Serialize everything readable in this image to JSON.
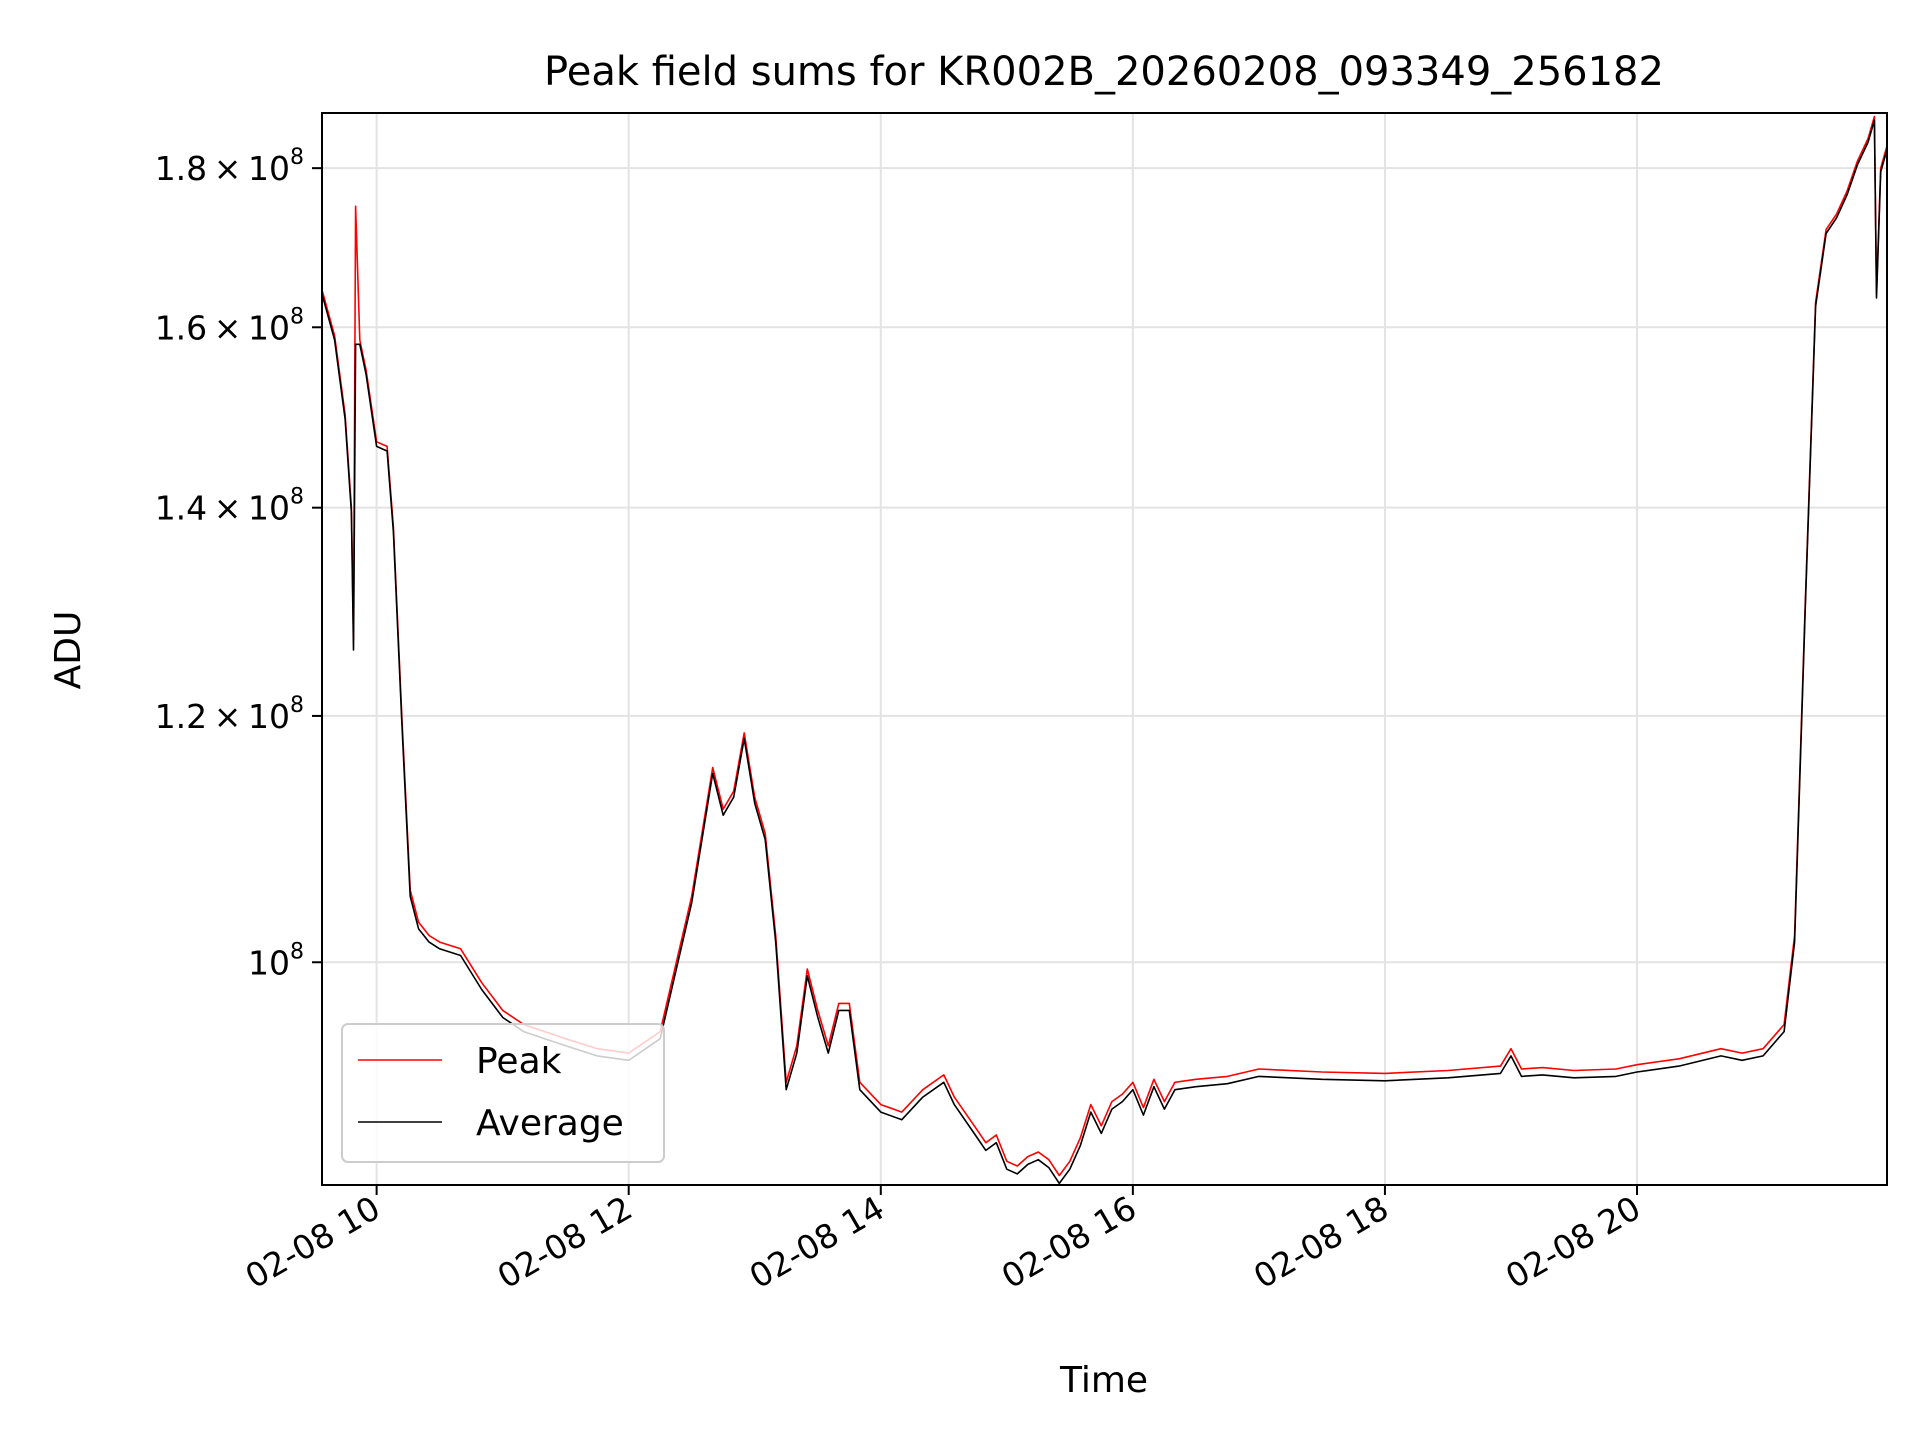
{
  "chart_data": {
    "type": "line",
    "title": "Peak field sums for KR002B_20260208_093349_256182",
    "xlabel": "Time",
    "ylabel": "ADU",
    "x_axis": "datetime",
    "y_scale": "log",
    "xlim": [
      "2026-02-08 09:34",
      "2026-02-08 21:59"
    ],
    "ylim": [
      84800000,
      187500000
    ],
    "grid": true,
    "legend_placement": "lower-left",
    "x_ticks": [
      {
        "value": "2026-02-08 10:00",
        "label": "02-08 10"
      },
      {
        "value": "2026-02-08 12:00",
        "label": "02-08 12"
      },
      {
        "value": "2026-02-08 14:00",
        "label": "02-08 14"
      },
      {
        "value": "2026-02-08 16:00",
        "label": "02-08 16"
      },
      {
        "value": "2026-02-08 18:00",
        "label": "02-08 18"
      },
      {
        "value": "2026-02-08 20:00",
        "label": "02-08 20"
      }
    ],
    "y_ticks": [
      {
        "value": 100000000,
        "mantissa": "",
        "exponent": "8"
      },
      {
        "value": 120000000,
        "mantissa": "1.2",
        "exponent": "8"
      },
      {
        "value": 140000000,
        "mantissa": "1.4",
        "exponent": "8"
      },
      {
        "value": 160000000,
        "mantissa": "1.6",
        "exponent": "8"
      },
      {
        "value": 180000000,
        "mantissa": "1.8",
        "exponent": "8"
      }
    ],
    "colors": {
      "peak": "#ff0000",
      "average": "#000000",
      "grid": "#e3e3e3"
    },
    "x": [
      "2026-02-08 09:34",
      "2026-02-08 09:40",
      "2026-02-08 09:45",
      "2026-02-08 09:48",
      "2026-02-08 09:49",
      "2026-02-08 09:50",
      "2026-02-08 09:52",
      "2026-02-08 09:55",
      "2026-02-08 10:00",
      "2026-02-08 10:05",
      "2026-02-08 10:08",
      "2026-02-08 10:12",
      "2026-02-08 10:16",
      "2026-02-08 10:20",
      "2026-02-08 10:25",
      "2026-02-08 10:30",
      "2026-02-08 10:40",
      "2026-02-08 10:50",
      "2026-02-08 11:00",
      "2026-02-08 11:10",
      "2026-02-08 11:20",
      "2026-02-08 11:30",
      "2026-02-08 11:45",
      "2026-02-08 12:00",
      "2026-02-08 12:15",
      "2026-02-08 12:30",
      "2026-02-08 12:40",
      "2026-02-08 12:45",
      "2026-02-08 12:50",
      "2026-02-08 12:55",
      "2026-02-08 13:00",
      "2026-02-08 13:05",
      "2026-02-08 13:10",
      "2026-02-08 13:15",
      "2026-02-08 13:20",
      "2026-02-08 13:25",
      "2026-02-08 13:30",
      "2026-02-08 13:35",
      "2026-02-08 13:40",
      "2026-02-08 13:45",
      "2026-02-08 13:50",
      "2026-02-08 14:00",
      "2026-02-08 14:10",
      "2026-02-08 14:20",
      "2026-02-08 14:30",
      "2026-02-08 14:35",
      "2026-02-08 14:45",
      "2026-02-08 14:50",
      "2026-02-08 14:55",
      "2026-02-08 15:00",
      "2026-02-08 15:05",
      "2026-02-08 15:10",
      "2026-02-08 15:15",
      "2026-02-08 15:20",
      "2026-02-08 15:25",
      "2026-02-08 15:30",
      "2026-02-08 15:35",
      "2026-02-08 15:40",
      "2026-02-08 15:45",
      "2026-02-08 15:50",
      "2026-02-08 15:55",
      "2026-02-08 16:00",
      "2026-02-08 16:05",
      "2026-02-08 16:10",
      "2026-02-08 16:15",
      "2026-02-08 16:20",
      "2026-02-08 16:30",
      "2026-02-08 16:45",
      "2026-02-08 17:00",
      "2026-02-08 17:30",
      "2026-02-08 18:00",
      "2026-02-08 18:30",
      "2026-02-08 18:55",
      "2026-02-08 19:00",
      "2026-02-08 19:05",
      "2026-02-08 19:15",
      "2026-02-08 19:30",
      "2026-02-08 19:50",
      "2026-02-08 20:00",
      "2026-02-08 20:20",
      "2026-02-08 20:40",
      "2026-02-08 20:50",
      "2026-02-08 21:00",
      "2026-02-08 21:10",
      "2026-02-08 21:15",
      "2026-02-08 21:20",
      "2026-02-08 21:25",
      "2026-02-08 21:30",
      "2026-02-08 21:35",
      "2026-02-08 21:40",
      "2026-02-08 21:45",
      "2026-02-08 21:50",
      "2026-02-08 21:53",
      "2026-02-08 21:54",
      "2026-02-08 21:56",
      "2026-02-08 21:59"
    ],
    "series": [
      {
        "name": "Peak",
        "values": [
          164500000,
          159000000,
          150000000,
          140000000,
          127000000,
          175000000,
          158500000,
          155000000,
          147000000,
          146500000,
          138000000,
          120000000,
          105500000,
          103000000,
          102000000,
          101500000,
          101000000,
          98500000,
          96500000,
          95500000,
          95000000,
          94500000,
          93800000,
          93500000,
          95000000,
          105000000,
          115500000,
          112000000,
          113500000,
          118500000,
          113000000,
          110000000,
          102000000,
          91500000,
          94000000,
          99500000,
          96500000,
          94000000,
          97000000,
          97000000,
          91500000,
          90000000,
          89500000,
          91000000,
          92000000,
          90500000,
          88500000,
          87500000,
          88000000,
          86300000,
          86000000,
          86600000,
          86900000,
          86400000,
          85400000,
          86300000,
          87800000,
          90000000,
          88600000,
          90200000,
          90700000,
          91500000,
          89800000,
          91700000,
          90200000,
          91500000,
          91700000,
          91900000,
          92400000,
          92200000,
          92100000,
          92300000,
          92600000,
          93800000,
          92400000,
          92500000,
          92300000,
          92400000,
          92700000,
          93100000,
          93800000,
          93500000,
          93800000,
          95500000,
          102000000,
          130000000,
          163000000,
          172000000,
          174000000,
          177000000,
          181000000,
          184000000,
          187000000,
          164000000,
          180000000,
          183000000
        ]
      },
      {
        "name": "Average",
        "values": [
          164000000,
          158500000,
          149500000,
          139500000,
          126000000,
          158000000,
          158000000,
          154500000,
          146500000,
          146000000,
          137500000,
          119500000,
          105000000,
          102500000,
          101500000,
          101000000,
          100500000,
          98000000,
          96000000,
          95000000,
          94500000,
          94000000,
          93300000,
          93000000,
          94500000,
          104500000,
          115000000,
          111500000,
          113000000,
          118000000,
          112500000,
          109500000,
          101500000,
          91000000,
          93500000,
          99000000,
          96000000,
          93500000,
          96500000,
          96500000,
          91000000,
          89500000,
          89000000,
          90500000,
          91500000,
          90000000,
          88000000,
          87000000,
          87500000,
          85800000,
          85500000,
          86100000,
          86400000,
          85900000,
          84900000,
          85800000,
          87300000,
          89500000,
          88100000,
          89700000,
          90200000,
          91000000,
          89300000,
          91200000,
          89700000,
          91000000,
          91200000,
          91400000,
          91900000,
          91700000,
          91600000,
          91800000,
          92100000,
          93300000,
          91900000,
          92000000,
          91800000,
          91900000,
          92200000,
          92600000,
          93300000,
          93000000,
          93300000,
          95000000,
          101500000,
          129500000,
          162500000,
          171500000,
          173500000,
          176500000,
          180500000,
          183500000,
          186500000,
          163500000,
          179500000,
          182500000
        ]
      }
    ]
  }
}
